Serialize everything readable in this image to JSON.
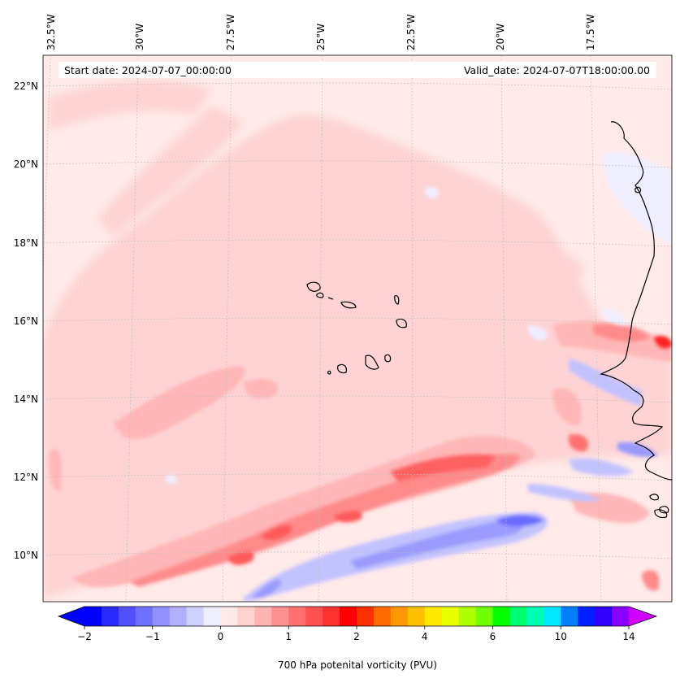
{
  "map": {
    "start_date": "Start date: 2024-07-07_00:00:00",
    "valid_date": "Valid_date: 2024-07-07T18:00:00.00"
  },
  "axes": {
    "longitude_labels": [
      "32.5°W",
      "30°W",
      "27.5°W",
      "25°W",
      "22.5°W",
      "20°W",
      "17.5°W"
    ],
    "latitude_labels": [
      "22°N",
      "20°N",
      "18°N",
      "16°N",
      "14°N",
      "12°N",
      "10°N"
    ]
  },
  "colorbar": {
    "label": "700 hPa potenital vorticity (PVU)",
    "tick_labels": [
      "−2",
      "−1",
      "0",
      "1",
      "2",
      "4",
      "6",
      "10",
      "14"
    ],
    "colors": [
      "#0000ff",
      "#2a2aff",
      "#5050ff",
      "#7070ff",
      "#9090ff",
      "#b0b0ff",
      "#d0d0ff",
      "#eeeeff",
      "#ffe8e8",
      "#ffd0d0",
      "#ffb4b4",
      "#ff9090",
      "#ff7070",
      "#ff5050",
      "#ff3030",
      "#ff0000",
      "#ff3000",
      "#ff6a00",
      "#ff9800",
      "#ffc000",
      "#ffe800",
      "#e8ff00",
      "#b0ff00",
      "#70ff00",
      "#00ff00",
      "#00ff70",
      "#00ffb4",
      "#00e8ff",
      "#0080ff",
      "#0020ff",
      "#3000ff",
      "#8800ff"
    ],
    "extend_low_color": "#0000ff",
    "extend_high_color": "#d200ff"
  }
}
